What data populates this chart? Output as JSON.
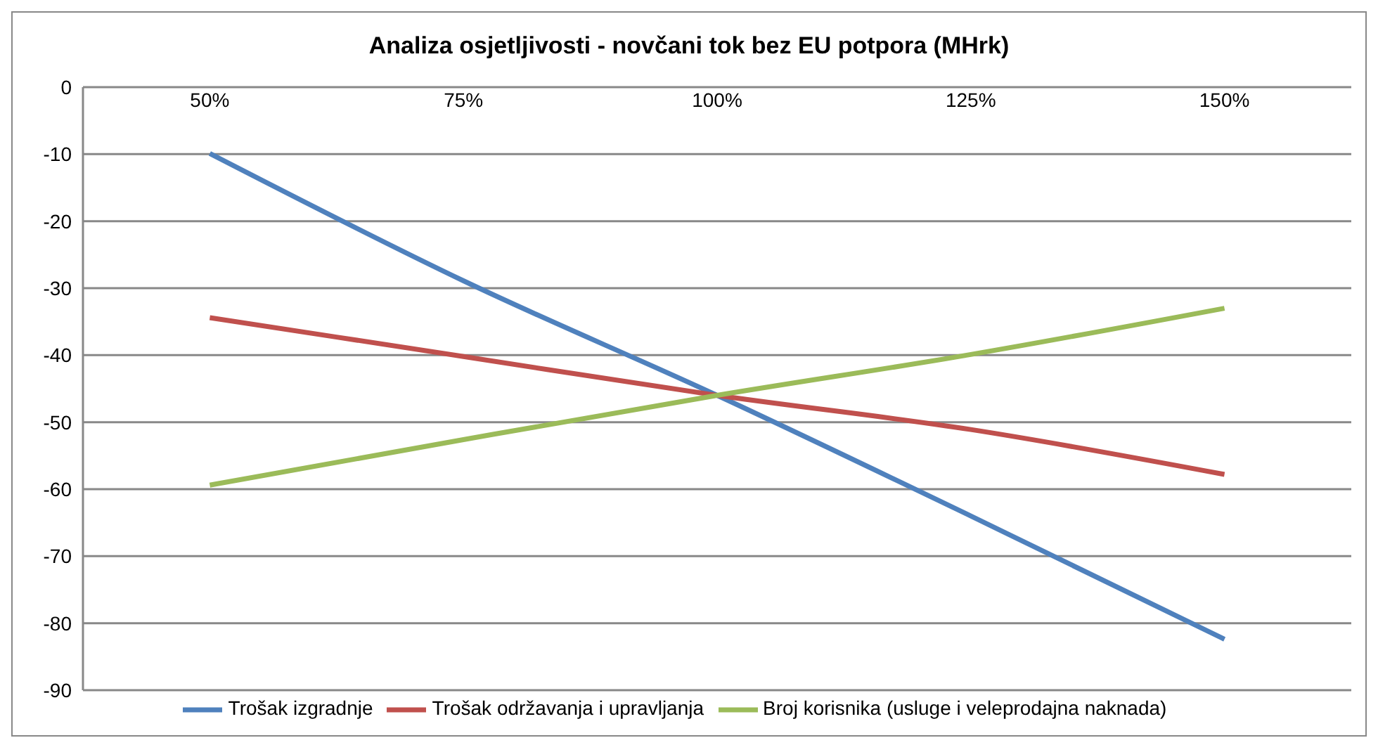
{
  "chart_data": {
    "type": "line",
    "title": "Analiza osjetljivosti  - novčani tok bez EU potpora (MHrk)",
    "categories": [
      "50%",
      "75%",
      "100%",
      "125%",
      "150%"
    ],
    "series": [
      {
        "name": "Trošak izgradnje",
        "color": "#4f81bd",
        "values": [
          -9.9,
          -28.9,
          -46,
          -64,
          -82.4
        ]
      },
      {
        "name": "Trošak održavanja i upravljanja",
        "color": "#c0504d",
        "values": [
          -34.4,
          -40.2,
          -46,
          -51.1,
          -57.8
        ]
      },
      {
        "name": "Broj korisnika (usluge i veleprodajna naknada)",
        "color": "#9bbb59",
        "values": [
          -59.4,
          -52.6,
          -46,
          -39.9,
          -33.0
        ]
      }
    ],
    "ylim": [
      -90,
      0
    ],
    "yticks": [
      -90,
      -80,
      -70,
      -60,
      -50,
      -40,
      -30,
      -20,
      -10,
      0
    ],
    "grid": "y",
    "legend": "bottom",
    "marker": "none",
    "line_style": "solid"
  }
}
